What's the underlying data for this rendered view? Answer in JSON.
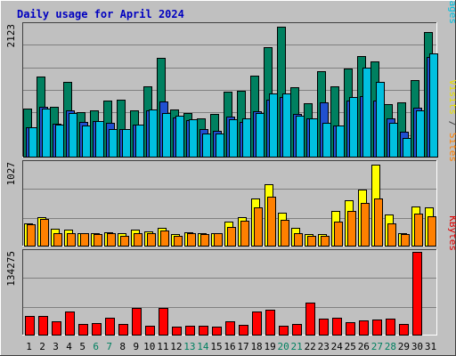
{
  "chart_data": {
    "type": "bar",
    "title": "Daily usage for April 2024",
    "categories": [
      "1",
      "2",
      "3",
      "4",
      "5",
      "6",
      "7",
      "8",
      "9",
      "10",
      "11",
      "12",
      "13",
      "14",
      "15",
      "16",
      "17",
      "18",
      "19",
      "20",
      "21",
      "22",
      "23",
      "24",
      "25",
      "26",
      "27",
      "28",
      "29",
      "30",
      "31"
    ],
    "weekend_days": [
      "6",
      "7",
      "13",
      "14",
      "20",
      "21",
      "27",
      "28"
    ],
    "panels": [
      {
        "id": "hits",
        "ymax_label": "2123",
        "ymax": 2123,
        "legend": [
          {
            "label": "Pages",
            "color": "#00c0e0"
          },
          {
            "label": " / ",
            "color": "#404040"
          },
          {
            "label": "Files",
            "color": "#2050d0"
          },
          {
            "label": " / ",
            "color": "#404040"
          },
          {
            "label": "Hits",
            "color": "#008060"
          }
        ],
        "series": [
          {
            "name": "Hits",
            "color": "#008060",
            "values": [
              780,
              1290,
              800,
              1210,
              720,
              740,
              900,
              920,
              750,
              1130,
              1590,
              760,
              710,
              620,
              690,
              1040,
              1060,
              1300,
              1760,
              2100,
              1120,
              860,
              1380,
              1130,
              1420,
              1620,
              1540,
              850,
              880,
              1240,
              2010
            ]
          },
          {
            "name": "Files",
            "color": "#2050d0",
            "values": [
              480,
              800,
              530,
              750,
              560,
              580,
              540,
              450,
              510,
              750,
              890,
              630,
              590,
              440,
              420,
              640,
              560,
              730,
              920,
              960,
              690,
              610,
              870,
              500,
              910,
              980,
              910,
              610,
              400,
              790,
              1610
            ]
          },
          {
            "name": "Pages",
            "color": "#00c0e0",
            "values": [
              480,
              780,
              510,
              700,
              500,
              580,
              450,
              440,
              510,
              760,
              710,
              660,
              600,
              380,
              370,
              600,
              610,
              700,
              1020,
              1020,
              660,
              610,
              550,
              500,
              960,
              1430,
              1210,
              550,
              300,
              740,
              1660
            ]
          }
        ]
      },
      {
        "id": "visits",
        "ymax_label": "1027",
        "ymax": 1027,
        "legend": [
          {
            "label": "Sites",
            "color": "#ff8000"
          },
          {
            "label": " / ",
            "color": "#404040"
          },
          {
            "label": "Visits",
            "color": "#e8e000"
          }
        ],
        "series": [
          {
            "name": "Visits",
            "color": "#ffff00",
            "values": [
              280,
              350,
              210,
              200,
              160,
              150,
              170,
              150,
              200,
              180,
              220,
              140,
              170,
              160,
              160,
              300,
              350,
              580,
              760,
              410,
              220,
              140,
              140,
              430,
              560,
              700,
              1000,
              390,
              150,
              490,
              480
            ]
          },
          {
            "name": "Sites",
            "color": "#ff8000",
            "values": [
              270,
              330,
              160,
              160,
              150,
              140,
              150,
              120,
              160,
              160,
              190,
              120,
              150,
              140,
              150,
              230,
              310,
              480,
              610,
              320,
              150,
              120,
              120,
              300,
              430,
              530,
              580,
              280,
              140,
              400,
              360
            ]
          }
        ]
      },
      {
        "id": "kbytes",
        "ymax_label": "134275",
        "ymax": 134275,
        "legend": [
          {
            "label": "KBytes",
            "color": "#e00000"
          }
        ],
        "series": [
          {
            "name": "KBytes",
            "color": "#ff0000",
            "values": [
              30000,
              31000,
              22000,
              37000,
              18000,
              19000,
              28000,
              18000,
              43000,
              15000,
              44000,
              13000,
              14000,
              14000,
              13000,
              22000,
              16000,
              38000,
              41000,
              15000,
              17000,
              52000,
              26000,
              27000,
              20000,
              23000,
              24000,
              26000,
              17000,
              134275,
              0
            ]
          }
        ]
      }
    ]
  }
}
